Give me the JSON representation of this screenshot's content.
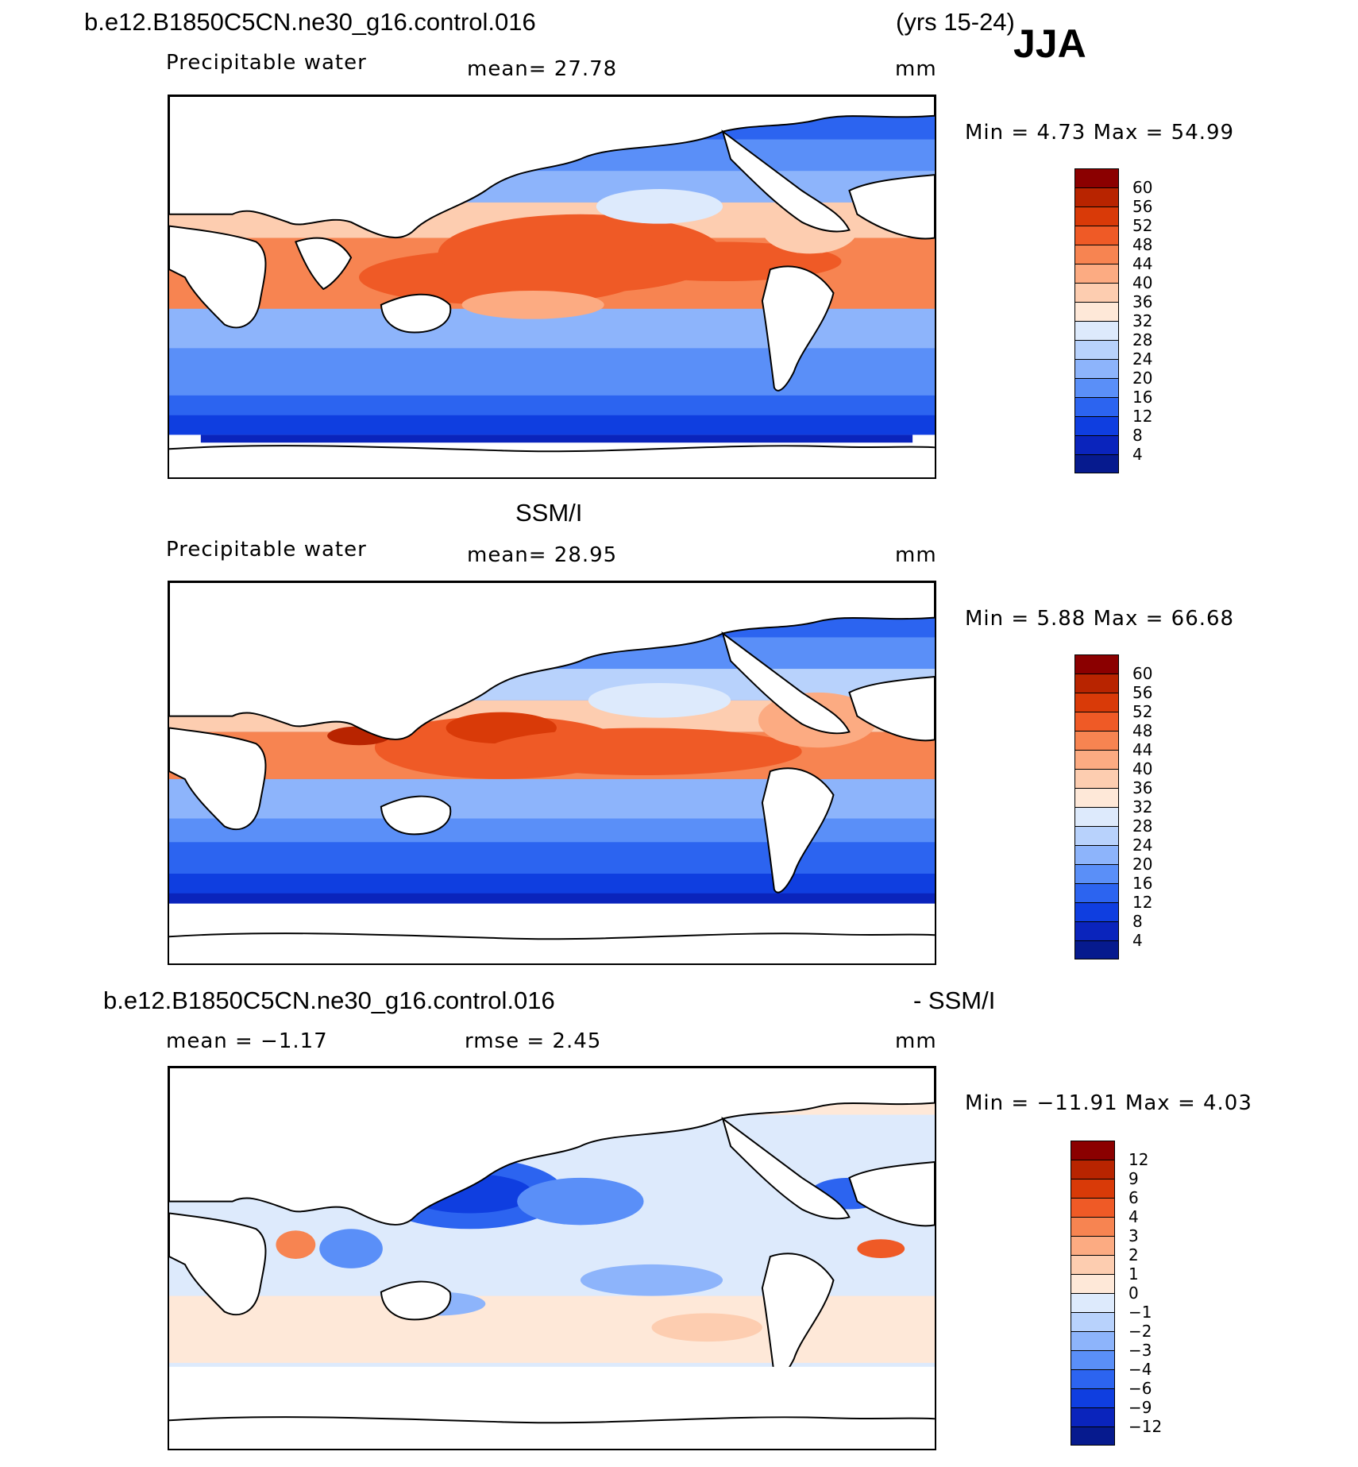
{
  "header": {
    "case_name": "b.e12.B1850C5CN.ne30_g16.control.016",
    "years": "(yrs 15-24)",
    "season": "JJA"
  },
  "panels": [
    {
      "id": "model",
      "title": "",
      "variable": "Precipitable water",
      "stat_text": "mean=   27.78",
      "units": "mm",
      "minmax": "Min =    4.73 Max =   54.99",
      "levels": [
        "60",
        "56",
        "52",
        "48",
        "44",
        "40",
        "36",
        "32",
        "28",
        "24",
        "20",
        "16",
        "12",
        "8",
        "4"
      ],
      "colors": [
        "#8b0000",
        "#b82400",
        "#d93a08",
        "#ef5a26",
        "#f78451",
        "#fcab82",
        "#fdcdb0",
        "#fee8d8",
        "#ddeafc",
        "#b8d2fc",
        "#8db4fb",
        "#5a8ff8",
        "#2c64f0",
        "#0f3ee0",
        "#0a24bc",
        "#061a8e"
      ]
    },
    {
      "id": "obs",
      "title": "SSM/I",
      "variable": "Precipitable water",
      "stat_text": "mean=   28.95",
      "units": "mm",
      "minmax": "Min =    5.88 Max =   66.68",
      "levels": [
        "60",
        "56",
        "52",
        "48",
        "44",
        "40",
        "36",
        "32",
        "28",
        "24",
        "20",
        "16",
        "12",
        "8",
        "4"
      ],
      "colors": [
        "#8b0000",
        "#b82400",
        "#d93a08",
        "#ef5a26",
        "#f78451",
        "#fcab82",
        "#fdcdb0",
        "#fee8d8",
        "#ddeafc",
        "#b8d2fc",
        "#8db4fb",
        "#5a8ff8",
        "#2c64f0",
        "#0f3ee0",
        "#0a24bc",
        "#061a8e"
      ]
    },
    {
      "id": "diff",
      "title_left": "b.e12.B1850C5CN.ne30_g16.control.016",
      "title_right": "- SSM/I",
      "stat_mean": "mean =   −1.17",
      "stat_rmse": "rmse =    2.45",
      "units": "mm",
      "minmax": "Min = −11.91 Max =    4.03",
      "levels": [
        "12",
        "9",
        "6",
        "4",
        "3",
        "2",
        "1",
        "0",
        "−1",
        "−2",
        "−3",
        "−4",
        "−6",
        "−9",
        "−12"
      ],
      "colors": [
        "#8b0000",
        "#b82400",
        "#d93a08",
        "#ef5a26",
        "#f78451",
        "#fcab82",
        "#fdcdb0",
        "#fee8d8",
        "#ddeafc",
        "#b8d2fc",
        "#8db4fb",
        "#5a8ff8",
        "#2c64f0",
        "#0f3ee0",
        "#0a24bc",
        "#061a8e"
      ]
    }
  ]
}
